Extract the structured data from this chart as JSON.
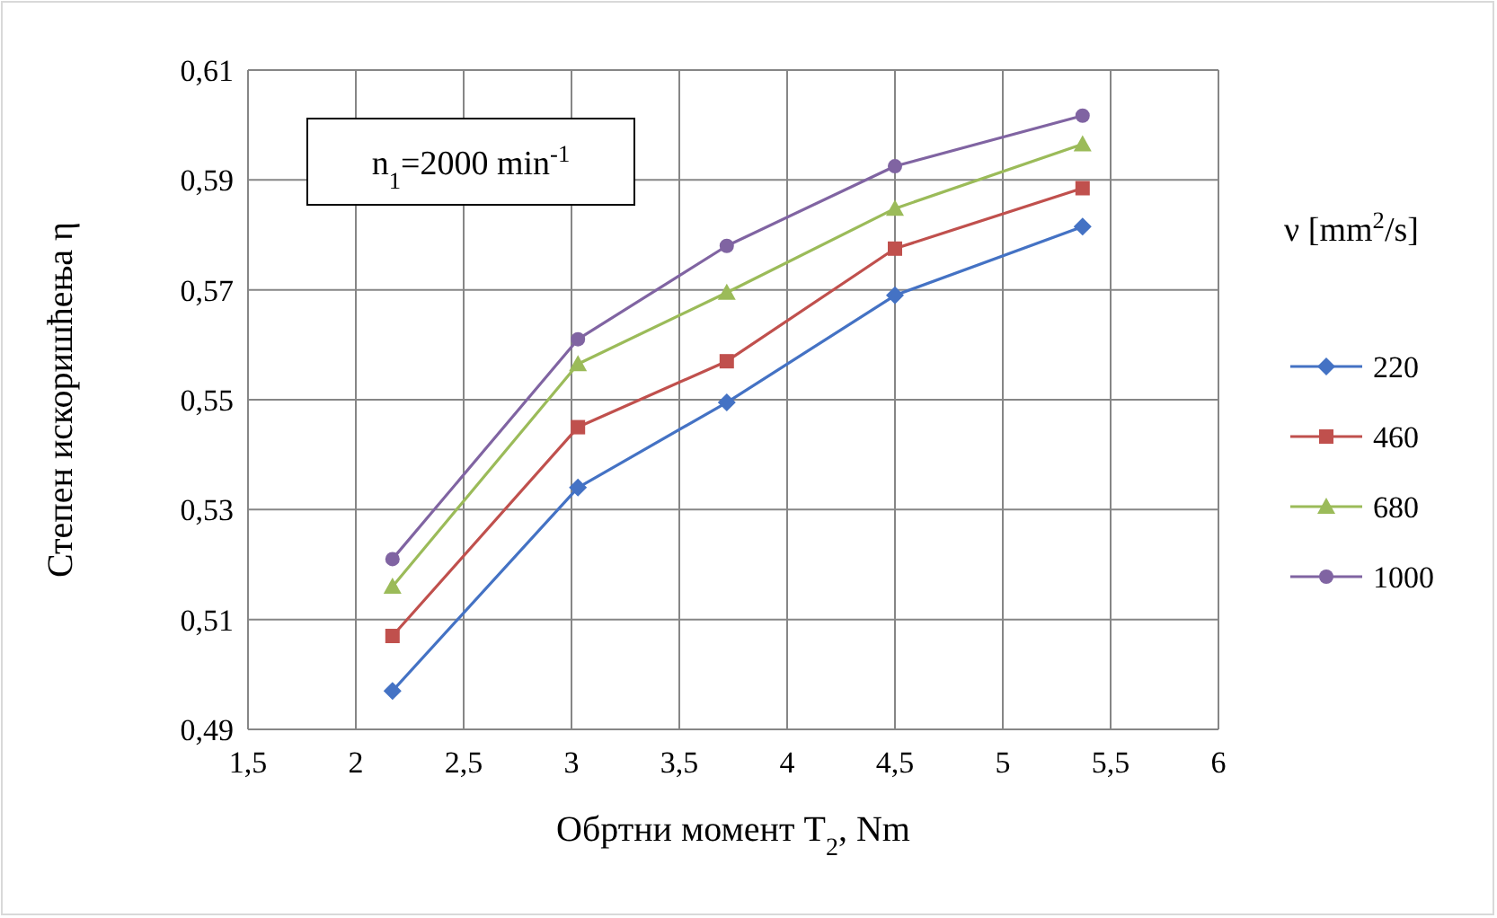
{
  "chart_data": {
    "type": "line",
    "xlabel": "Обртни момент T$_{2}$, Nm",
    "ylabel": "Степен  искоришћења η",
    "legend_title": "ν [mm$^{2}$/s]",
    "annotations": [
      "n$_{1}$=2000 min$^{-1}$"
    ],
    "xlim": [
      1.5,
      6
    ],
    "xticks": [
      {
        "value": 1.5,
        "label": "1,5"
      },
      {
        "value": 2,
        "label": "2"
      },
      {
        "value": 2.5,
        "label": "2,5"
      },
      {
        "value": 3,
        "label": "3"
      },
      {
        "value": 3.5,
        "label": "3,5"
      },
      {
        "value": 4,
        "label": "4"
      },
      {
        "value": 4.5,
        "label": "4,5"
      },
      {
        "value": 5,
        "label": "5"
      },
      {
        "value": 5.5,
        "label": "5,5"
      },
      {
        "value": 6,
        "label": "6"
      }
    ],
    "ylim": [
      0.49,
      0.61
    ],
    "yticks": [
      {
        "value": 0.49,
        "label": "0,49"
      },
      {
        "value": 0.51,
        "label": "0,51"
      },
      {
        "value": 0.53,
        "label": "0,53"
      },
      {
        "value": 0.55,
        "label": "0,55"
      },
      {
        "value": 0.57,
        "label": "0,57"
      },
      {
        "value": 0.59,
        "label": "0,59"
      },
      {
        "value": 0.61,
        "label": "0,61"
      }
    ],
    "grid": true,
    "legend": "right",
    "line_style": "solid",
    "x": [
      2.17,
      3.03,
      3.72,
      4.5,
      5.37
    ],
    "series": [
      {
        "name": "220",
        "color": "#4472c4",
        "marker": "diamond",
        "values": [
          0.497,
          0.534,
          0.5495,
          0.569,
          0.5815
        ]
      },
      {
        "name": "460",
        "color": "#c0504d",
        "marker": "square",
        "values": [
          0.507,
          0.545,
          0.557,
          0.5775,
          0.5885
        ]
      },
      {
        "name": "680",
        "color": "#9bbb59",
        "marker": "triangle",
        "values": [
          0.516,
          0.5565,
          0.5695,
          0.5848,
          0.5965
        ]
      },
      {
        "name": "1000",
        "color": "#8064a2",
        "marker": "circle",
        "values": [
          0.521,
          0.561,
          0.578,
          0.5925,
          0.6017
        ]
      }
    ]
  }
}
